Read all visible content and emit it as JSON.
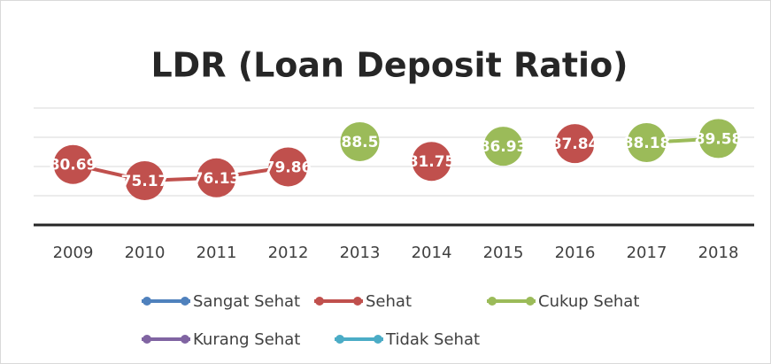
{
  "chart_data": {
    "type": "line",
    "title": "LDR (Loan Deposit Ratio)",
    "categories": [
      "2009",
      "2010",
      "2011",
      "2012",
      "2013",
      "2014",
      "2015",
      "2016",
      "2017",
      "2018"
    ],
    "series": [
      {
        "name": "Sangat Sehat",
        "color": "#4f81bd",
        "values": [
          null,
          null,
          null,
          null,
          null,
          null,
          null,
          null,
          null,
          null
        ]
      },
      {
        "name": "Sehat",
        "color": "#c0504d",
        "values": [
          80.69,
          75.17,
          76.13,
          79.86,
          null,
          81.75,
          null,
          87.84,
          null,
          null
        ]
      },
      {
        "name": "Cukup Sehat",
        "color": "#9bbb59",
        "values": [
          null,
          null,
          null,
          null,
          88.5,
          null,
          86.93,
          null,
          88.18,
          89.58
        ]
      },
      {
        "name": "Kurang Sehat",
        "color": "#8064a2",
        "values": [
          null,
          null,
          null,
          null,
          null,
          null,
          null,
          null,
          null,
          null
        ]
      },
      {
        "name": "Tidak Sehat",
        "color": "#4bacc6",
        "values": [
          null,
          null,
          null,
          null,
          null,
          null,
          null,
          null,
          null,
          null
        ]
      }
    ],
    "ylim": [
      60,
      100
    ],
    "yticks": [
      60,
      70,
      80,
      90,
      100
    ],
    "grid": true,
    "legend": "bottom"
  }
}
